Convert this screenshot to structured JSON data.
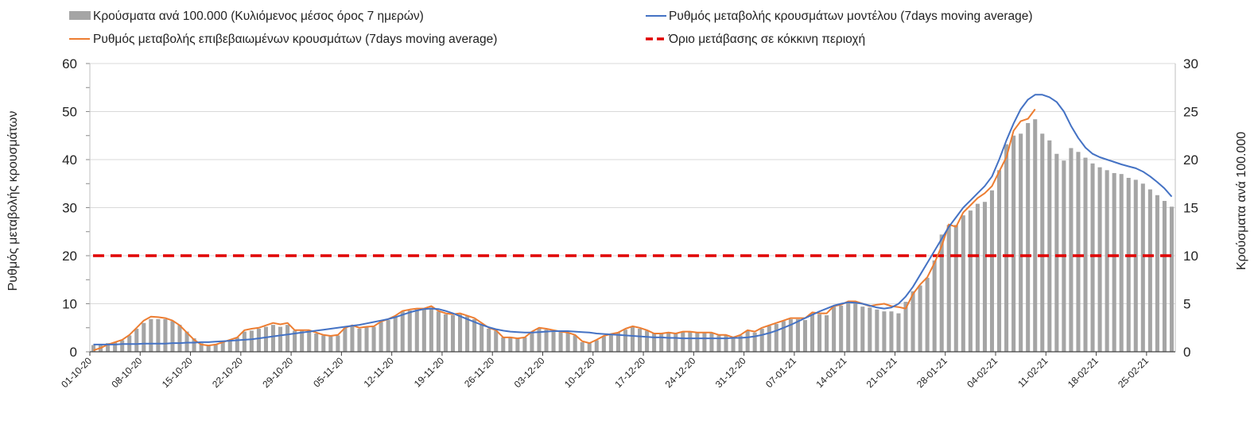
{
  "chart_data": {
    "type": "bar+line",
    "title": "",
    "legend": {
      "position": "top",
      "items": [
        "Κρούσματα ανά 100.000 (Κυλιόμενος μέσος όρος 7 ημερών)",
        "Ρυθμός μεταβολής κρουσμάτων μοντέλου (7days moving average)",
        "Ρυθμός μεταβολής επιβεβαιωμένων κρουσμάτων (7days moving average)",
        "Όριο μετάβασης σε κόκκινη περιοχή"
      ]
    },
    "ylabel_left": "Ρυθμός μεταβολής κρουσμάτων",
    "ylabel_right": "Κρούσματα ανά 100.000",
    "ylim_left": [
      0,
      60
    ],
    "ylim_right": [
      0,
      30
    ],
    "yticks_left": [
      "0",
      "10",
      "20",
      "30",
      "40",
      "50",
      "60"
    ],
    "yticks_right": [
      "0",
      "5",
      "10",
      "15",
      "20",
      "25",
      "30"
    ],
    "grid": true,
    "x_start": "01-10-20",
    "x_days": 151,
    "xtick_labels": [
      "01-10-20",
      "08-10-20",
      "15-10-20",
      "22-10-20",
      "29-10-20",
      "05-11-20",
      "12-11-20",
      "19-11-20",
      "26-11-20",
      "03-12-20",
      "10-12-20",
      "17-12-20",
      "24-12-20",
      "31-12-20",
      "07-01-21",
      "14-01-21",
      "21-01-21",
      "28-01-21",
      "04-02-21",
      "11-02-21",
      "18-02-21",
      "25-02-21"
    ],
    "colors": {
      "bars": "#a5a5a5",
      "model": "#4472c4",
      "confirmed": "#ed7d31",
      "threshold": "#e00000",
      "grid": "#d9d9d9"
    },
    "series": [
      {
        "name": "Κρούσματα ανά 100.000 (Κυλιόμενος μέσος όρος 7 ημερών)",
        "axis": "right",
        "kind": "bar",
        "values": [
          0.7,
          0.8,
          0.9,
          1.0,
          1.2,
          1.7,
          2.4,
          3.0,
          3.4,
          3.4,
          3.4,
          3.2,
          2.8,
          2.1,
          1.4,
          0.9,
          0.7,
          0.8,
          1.0,
          1.2,
          1.5,
          2.1,
          2.2,
          2.4,
          2.6,
          2.8,
          2.6,
          2.8,
          2.2,
          2.2,
          2.2,
          1.9,
          1.7,
          1.6,
          1.7,
          2.5,
          2.7,
          2.4,
          2.6,
          2.6,
          3.1,
          3.3,
          3.6,
          4.2,
          4.3,
          4.4,
          4.4,
          4.6,
          4.2,
          3.9,
          3.8,
          3.9,
          3.7,
          3.4,
          2.9,
          2.4,
          2.2,
          1.5,
          1.5,
          1.4,
          1.5,
          2.1,
          2.4,
          2.3,
          2.2,
          2.1,
          2.0,
          1.7,
          1.0,
          0.9,
          1.2,
          1.6,
          1.8,
          2.0,
          2.3,
          2.6,
          2.4,
          2.2,
          1.9,
          1.9,
          2.0,
          1.9,
          2.1,
          2.1,
          2.0,
          2.0,
          2.0,
          1.7,
          1.7,
          1.5,
          1.7,
          2.2,
          2.0,
          2.4,
          2.7,
          2.9,
          3.2,
          3.4,
          3.4,
          3.3,
          4.0,
          3.9,
          3.8,
          4.7,
          4.8,
          5.1,
          5.1,
          4.7,
          4.6,
          4.4,
          4.2,
          4.2,
          4.0,
          5.2,
          6.3,
          6.9,
          7.7,
          9.5,
          12.2,
          13.2,
          13.2,
          14.2,
          14.7,
          15.4,
          15.6,
          16.8,
          18.9,
          21.6,
          22.5,
          22.7,
          23.8,
          24.2,
          22.7,
          22.0,
          20.6,
          19.9,
          21.2,
          20.8,
          20.2,
          19.6,
          19.2,
          18.9,
          18.6,
          18.5,
          18.1,
          17.9,
          17.5,
          16.9,
          16.3,
          15.7,
          15.1
        ]
      },
      {
        "name": "Ρυθμός μεταβολής κρουσμάτων μοντέλου (7days moving average)",
        "axis": "left",
        "kind": "line",
        "values": [
          1.5,
          1.5,
          1.5,
          1.5,
          1.6,
          1.6,
          1.6,
          1.7,
          1.7,
          1.7,
          1.7,
          1.8,
          1.8,
          1.9,
          1.9,
          2.0,
          2.0,
          2.1,
          2.2,
          2.3,
          2.4,
          2.5,
          2.6,
          2.8,
          3.0,
          3.2,
          3.4,
          3.6,
          3.8,
          4.0,
          4.2,
          4.4,
          4.6,
          4.8,
          5.0,
          5.2,
          5.4,
          5.6,
          5.9,
          6.2,
          6.5,
          6.8,
          7.2,
          7.7,
          8.2,
          8.6,
          8.9,
          9.0,
          8.9,
          8.5,
          8.0,
          7.4,
          6.8,
          6.2,
          5.6,
          5.1,
          4.7,
          4.4,
          4.2,
          4.1,
          4.0,
          4.0,
          4.1,
          4.2,
          4.3,
          4.3,
          4.3,
          4.2,
          4.1,
          4.0,
          3.8,
          3.7,
          3.6,
          3.5,
          3.4,
          3.3,
          3.2,
          3.1,
          3.0,
          3.0,
          2.9,
          2.9,
          2.8,
          2.8,
          2.8,
          2.8,
          2.8,
          2.8,
          2.8,
          2.9,
          2.9,
          3.0,
          3.2,
          3.5,
          3.9,
          4.4,
          5.0,
          5.6,
          6.3,
          7.0,
          7.7,
          8.4,
          9.0,
          9.6,
          10.0,
          10.3,
          10.2,
          10.0,
          9.6,
          9.2,
          9.0,
          9.2,
          10.0,
          11.5,
          13.5,
          16.0,
          18.5,
          21.0,
          23.5,
          26.0,
          28.0,
          30.0,
          31.5,
          33.0,
          34.5,
          36.5,
          40.0,
          44.0,
          47.5,
          50.5,
          52.5,
          53.5,
          53.5,
          53.0,
          52.0,
          50.0,
          47.0,
          44.5,
          42.5,
          41.2,
          40.5,
          40.0,
          39.5,
          39.0,
          38.6,
          38.2,
          37.5,
          36.5,
          35.3,
          34.0,
          32.3
        ]
      },
      {
        "name": "Ρυθμός μεταβολής επιβεβαιωμένων κρουσμάτων (7days moving average)",
        "axis": "left",
        "kind": "line",
        "values": [
          0.3,
          0.8,
          1.5,
          2,
          2.5,
          3.5,
          5,
          6.5,
          7.3,
          7.2,
          7,
          6.5,
          5.5,
          4,
          2.5,
          1.5,
          1.3,
          1.5,
          2,
          2.5,
          3,
          4.5,
          4.8,
          5,
          5.5,
          6,
          5.7,
          6,
          4.5,
          4.5,
          4.5,
          4,
          3.5,
          3.3,
          3.5,
          5,
          5.5,
          5,
          5.2,
          5.3,
          6.3,
          6.8,
          7.5,
          8.5,
          8.8,
          9,
          9,
          9.5,
          8.5,
          8,
          7.8,
          8,
          7.5,
          7,
          6,
          5,
          4.5,
          3,
          3,
          2.8,
          3,
          4.2,
          5,
          4.8,
          4.5,
          4.2,
          4,
          3.5,
          2.2,
          1.8,
          2.5,
          3.3,
          3.7,
          4,
          4.8,
          5.3,
          5,
          4.5,
          3.8,
          3.8,
          4,
          3.8,
          4.2,
          4.2,
          4,
          4,
          4,
          3.5,
          3.5,
          3,
          3.5,
          4.5,
          4.2,
          5,
          5.5,
          6,
          6.5,
          7,
          7,
          7,
          8.2,
          8,
          8,
          9.5,
          9.8,
          10.5,
          10.5,
          10,
          9.5,
          9.8,
          10,
          9.5,
          9.3,
          9,
          12,
          14,
          15.5,
          18.5,
          22,
          26.5,
          26,
          29,
          30.5,
          32,
          33,
          34.5,
          37.5,
          40.5,
          46,
          48,
          48.5,
          50.5
        ]
      },
      {
        "name": "Όριο μετάβασης σε κόκκινη περιοχή",
        "axis": "left",
        "kind": "hline",
        "value": 20
      }
    ]
  }
}
